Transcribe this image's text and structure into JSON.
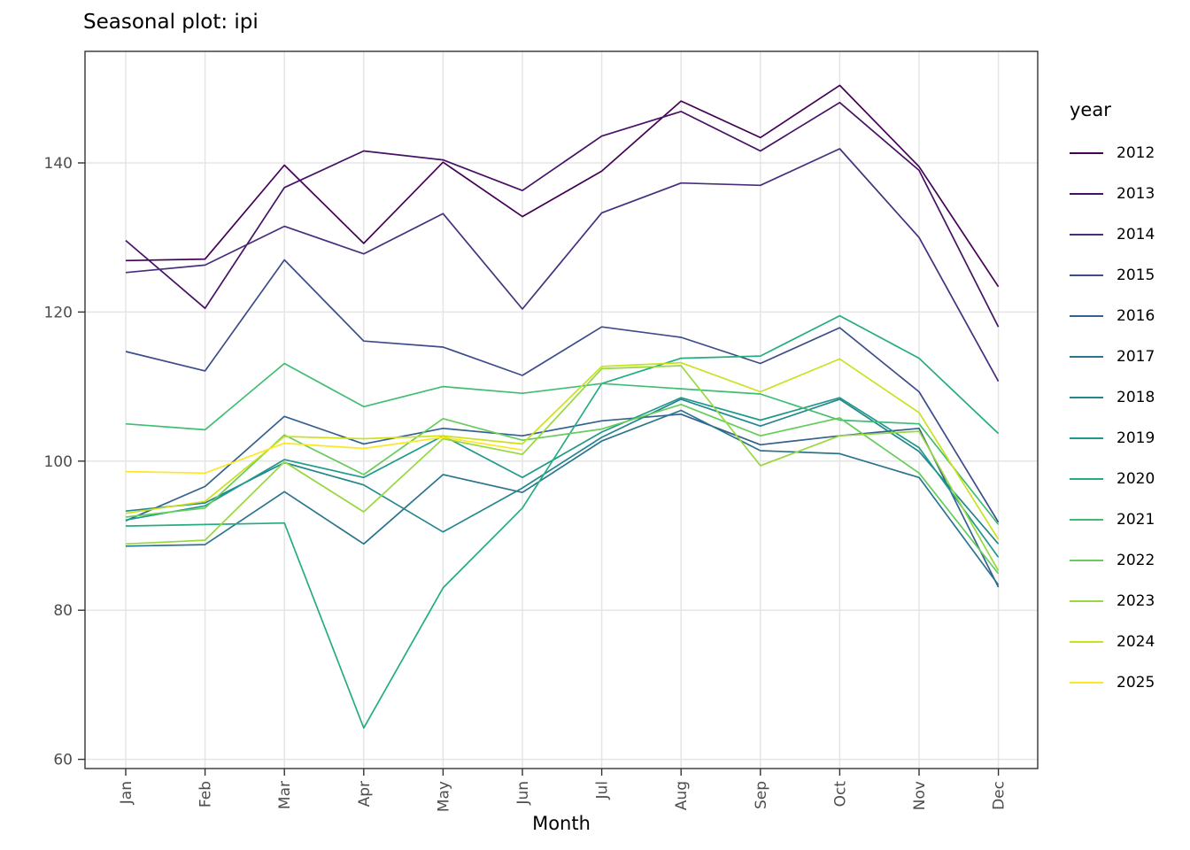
{
  "title": "Seasonal plot: ipi",
  "x_axis": {
    "label": "Month"
  },
  "y_axis": {
    "tick_labels": [
      "60",
      "80",
      "100",
      "120",
      "140"
    ],
    "tick_values": [
      60,
      80,
      100,
      120,
      140
    ]
  },
  "legend": {
    "title": "year"
  },
  "style": {
    "grid_color": "#e5e5e5",
    "panel_border_color": "#333333",
    "tick_color": "#333333",
    "axis_text_color": "#4d4d4d",
    "line_width": 1.7
  },
  "chart_data": {
    "type": "line",
    "title": "Seasonal plot: ipi",
    "xlabel": "Month",
    "ylabel": "",
    "x": [
      "Jan",
      "Feb",
      "Mar",
      "Apr",
      "May",
      "Jun",
      "Jul",
      "Aug",
      "Sep",
      "Oct",
      "Nov",
      "Dec"
    ],
    "ylim": [
      58.8,
      155.0
    ],
    "grid": true,
    "legend_position": "right",
    "series": [
      {
        "name": "2012",
        "color": "#440154",
        "values": [
          126.9,
          127.1,
          139.7,
          129.2,
          140.1,
          132.8,
          138.9,
          148.3,
          143.4,
          150.4,
          139.5,
          123.4
        ]
      },
      {
        "name": "2013",
        "color": "#471164",
        "values": [
          129.6,
          120.5,
          136.7,
          141.6,
          140.4,
          136.3,
          143.6,
          146.9,
          141.6,
          148.1,
          139.0,
          118.0
        ]
      },
      {
        "name": "2014",
        "color": "#472f7d",
        "values": [
          125.3,
          126.3,
          131.5,
          127.8,
          133.2,
          120.4,
          133.3,
          137.3,
          137.0,
          141.9,
          130.0,
          110.7
        ]
      },
      {
        "name": "2015",
        "color": "#3e4c8a",
        "values": [
          114.7,
          112.1,
          127.0,
          116.1,
          115.3,
          111.5,
          118.0,
          116.6,
          113.1,
          117.9,
          109.3,
          91.8
        ]
      },
      {
        "name": "2016",
        "color": "#34618d",
        "values": [
          92.0,
          96.6,
          106.0,
          102.3,
          104.4,
          103.4,
          105.4,
          106.3,
          102.2,
          103.4,
          104.4,
          83.1
        ]
      },
      {
        "name": "2017",
        "color": "#2b748e",
        "values": [
          88.6,
          88.8,
          95.9,
          88.9,
          98.2,
          95.8,
          102.7,
          106.8,
          101.4,
          101.0,
          97.8,
          83.4
        ]
      },
      {
        "name": "2018",
        "color": "#24868e",
        "values": [
          93.3,
          94.4,
          99.8,
          96.8,
          90.5,
          96.4,
          103.2,
          108.3,
          104.7,
          108.3,
          101.3,
          88.9
        ]
      },
      {
        "name": "2019",
        "color": "#1f998a",
        "values": [
          92.1,
          94.0,
          100.2,
          97.8,
          103.4,
          97.8,
          103.9,
          108.5,
          105.5,
          108.5,
          101.8,
          87.1
        ]
      },
      {
        "name": "2020",
        "color": "#25ac82",
        "values": [
          91.3,
          91.5,
          91.7,
          64.2,
          83.0,
          93.7,
          110.4,
          113.8,
          114.1,
          119.5,
          113.8,
          103.7
        ]
      },
      {
        "name": "2021",
        "color": "#40bd72",
        "values": [
          105.0,
          104.2,
          113.1,
          107.3,
          110.0,
          109.1,
          110.4,
          109.7,
          109.0,
          105.5,
          105.0,
          91.5
        ]
      },
      {
        "name": "2022",
        "color": "#67cc5c",
        "values": [
          92.5,
          93.7,
          103.5,
          98.2,
          105.7,
          102.8,
          104.3,
          107.6,
          103.4,
          105.8,
          98.4,
          84.9
        ]
      },
      {
        "name": "2023",
        "color": "#97d83f",
        "values": [
          88.9,
          89.4,
          99.9,
          93.2,
          103.0,
          100.9,
          112.4,
          112.8,
          99.4,
          103.4,
          104.0,
          85.3
        ]
      },
      {
        "name": "2024",
        "color": "#cbe11e",
        "values": [
          93.0,
          94.6,
          103.3,
          103.0,
          103.4,
          102.3,
          112.7,
          113.2,
          109.3,
          113.7,
          106.5,
          89.5
        ]
      },
      {
        "name": "2025",
        "color": "#fde725",
        "values": [
          98.6,
          98.4,
          102.4,
          101.7,
          103.2,
          101.5
        ]
      }
    ]
  }
}
